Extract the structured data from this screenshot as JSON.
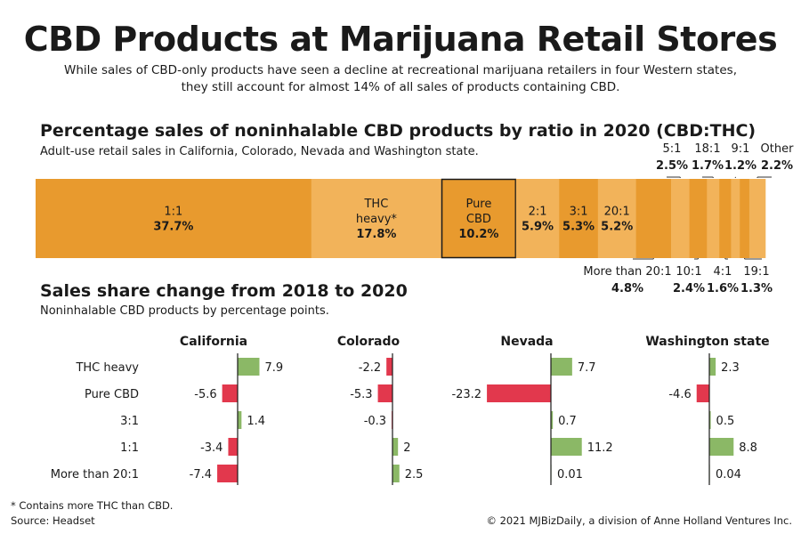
{
  "header": {
    "title": "CBD Products at Marijuana Retail Stores",
    "subtitle": "While sales of CBD-only products have seen a decline at recreational marijuana retailers in four Western states, they still account for almost 14% of all sales of products containing CBD."
  },
  "section1": {
    "title": "Percentage sales of noninhalable CBD products by ratio in 2020 (CBD:THC)",
    "subtitle": "Adult-use retail sales in California, Colorado, Nevada and Washington state."
  },
  "section2": {
    "title": "Sales share change from 2018 to 2020",
    "subtitle": "Noninhalable CBD products by percentage points."
  },
  "chart_data": [
    {
      "type": "bar",
      "layout": "stacked-horizontal-100",
      "segments": [
        {
          "label": "1:1",
          "value": 37.7,
          "display": "37.7%"
        },
        {
          "label": "THC heavy*",
          "value": 17.8,
          "display": "17.8%"
        },
        {
          "label": "Pure CBD",
          "value": 10.2,
          "display": "10.2%",
          "highlight": true
        },
        {
          "label": "2:1",
          "value": 5.9,
          "display": "5.9%"
        },
        {
          "label": "3:1",
          "value": 5.3,
          "display": "5.3%"
        },
        {
          "label": "20:1",
          "value": 5.2,
          "display": "5.2%"
        },
        {
          "label": "More than 20:1",
          "value": 4.8,
          "display": "4.8%",
          "callout": "below"
        },
        {
          "label": "5:1",
          "value": 2.5,
          "display": "2.5%",
          "callout": "above"
        },
        {
          "label": "10:1",
          "value": 2.4,
          "display": "2.4%",
          "callout": "below"
        },
        {
          "label": "18:1",
          "value": 1.7,
          "display": "1.7%",
          "callout": "above"
        },
        {
          "label": "4:1",
          "value": 1.6,
          "display": "1.6%",
          "callout": "below"
        },
        {
          "label": "9:1",
          "value": 1.2,
          "display": "1.2%",
          "callout": "above"
        },
        {
          "label": "19:1",
          "value": 1.3,
          "display": "1.3%",
          "callout": "below"
        },
        {
          "label": "Other",
          "value": 2.2,
          "display": "2.2%",
          "callout": "above"
        }
      ],
      "colors": {
        "dark": "#e89a2e",
        "light": "#f2b35a",
        "highlight_border": "#1a1a1a"
      }
    },
    {
      "type": "bar",
      "layout": "diverging-small-multiples",
      "categories": [
        "THC heavy",
        "Pure CBD",
        "3:1",
        "1:1",
        "More than 20:1"
      ],
      "series": [
        {
          "name": "California",
          "values": [
            7.9,
            -5.6,
            1.4,
            -3.4,
            -7.4
          ],
          "labels": [
            "7.9",
            "-5.6",
            "1.4",
            "-3.4",
            "-7.4"
          ]
        },
        {
          "name": "Colorado",
          "values": [
            -2.2,
            -5.3,
            -0.3,
            2,
            2.5
          ],
          "labels": [
            "-2.2",
            "-5.3",
            "-0.3",
            "2",
            "2.5"
          ]
        },
        {
          "name": "Nevada",
          "values": [
            7.7,
            -23.2,
            0.7,
            11.2,
            0.01
          ],
          "labels": [
            "7.7",
            "-23.2",
            "0.7",
            "11.2",
            "0.01"
          ]
        },
        {
          "name": "Washington state",
          "values": [
            2.3,
            -4.6,
            0.5,
            8.8,
            0.04
          ],
          "labels": [
            "2.3",
            "-4.6",
            "0.5",
            "8.8",
            "0.04"
          ]
        }
      ],
      "colors": {
        "positive": "#8bb866",
        "negative": "#e2384d"
      }
    }
  ],
  "footer": {
    "footnote": "* Contains more THC than CBD.",
    "source": "Source: Headset",
    "copyright": "© 2021 MJBizDaily, a division of Anne Holland Ventures Inc."
  }
}
